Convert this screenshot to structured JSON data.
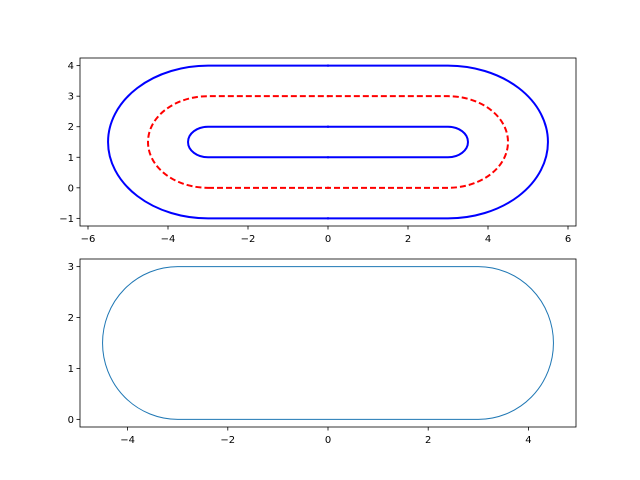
{
  "chart_data": [
    {
      "type": "line",
      "title": "",
      "xlabel": "",
      "ylabel": "",
      "xlim": [
        -6.2,
        6.2
      ],
      "ylim": [
        -1.25,
        4.25
      ],
      "xticks": [
        -6,
        -4,
        -2,
        0,
        2,
        4,
        6
      ],
      "yticks": [
        -1,
        0,
        1,
        2,
        3,
        4
      ],
      "xtick_labels": [
        "−6",
        "−4",
        "−2",
        "0",
        "2",
        "4",
        "6"
      ],
      "ytick_labels": [
        "−1",
        "0",
        "1",
        "2",
        "3",
        "4"
      ],
      "grid": false,
      "series": [
        {
          "shape": "stadium",
          "center": [
            0,
            1.5
          ],
          "half_straight_length": 3,
          "radius": 0.5,
          "color": "#0000ff",
          "style": "solid",
          "x": [
            -3,
            0,
            3,
            3.5,
            3,
            0,
            -3,
            -3.5
          ],
          "y": [
            1,
            1,
            1,
            1.5,
            2,
            2,
            2,
            1.5
          ]
        },
        {
          "shape": "stadium",
          "center": [
            0,
            1.5
          ],
          "half_straight_length": 3,
          "radius": 1.5,
          "color": "#ff0000",
          "style": "dashed",
          "x": [
            -3,
            0,
            3,
            4.5,
            3,
            0,
            -3,
            -4.5
          ],
          "y": [
            0,
            0,
            0,
            1.5,
            3,
            3,
            3,
            1.5
          ]
        },
        {
          "shape": "stadium",
          "center": [
            0,
            1.5
          ],
          "half_straight_length": 3,
          "radius": 2.5,
          "color": "#0000ff",
          "style": "solid",
          "x": [
            -3,
            0,
            3,
            5.5,
            3,
            0,
            -3,
            -5.5
          ],
          "y": [
            -1,
            -1,
            -1,
            1.5,
            4,
            4,
            4,
            1.5
          ]
        }
      ]
    },
    {
      "type": "line",
      "title": "",
      "xlabel": "",
      "ylabel": "",
      "xlim": [
        -4.95,
        4.95
      ],
      "ylim": [
        -0.15,
        3.15
      ],
      "xticks": [
        -4,
        -2,
        0,
        2,
        4
      ],
      "yticks": [
        0,
        1,
        2,
        3
      ],
      "xtick_labels": [
        "−4",
        "−2",
        "0",
        "2",
        "4"
      ],
      "ytick_labels": [
        "0",
        "1",
        "2",
        "3"
      ],
      "grid": false,
      "series": [
        {
          "shape": "stadium",
          "center": [
            0,
            1.5
          ],
          "half_straight_length": 3,
          "radius": 1.5,
          "color": "#1f77b4",
          "style": "solid",
          "x": [
            -3,
            0,
            3,
            4.5,
            3,
            0,
            -3,
            -4.5
          ],
          "y": [
            0,
            0,
            0,
            1.5,
            3,
            3,
            3,
            1.5
          ]
        }
      ]
    }
  ]
}
